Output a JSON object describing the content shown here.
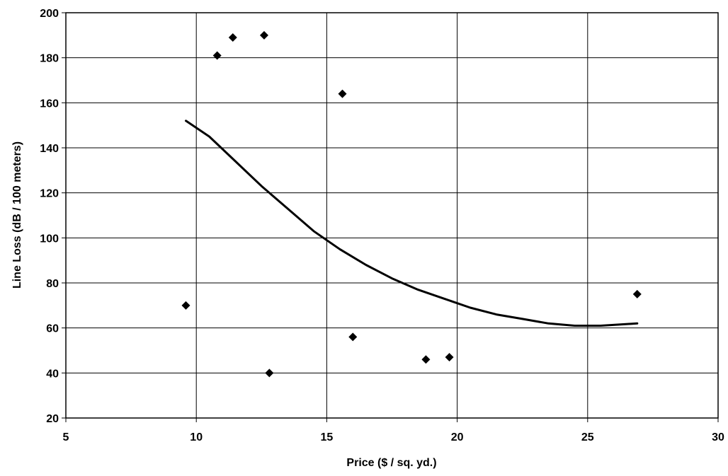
{
  "chart_data": {
    "type": "scatter",
    "title": "",
    "xlabel": "Price ($ / sq. yd.)",
    "ylabel": "Line Loss (dB / 100 meters)",
    "xlim": [
      5,
      30
    ],
    "ylim": [
      20,
      200
    ],
    "x_ticks": [
      5,
      10,
      15,
      20,
      25,
      30
    ],
    "y_ticks": [
      20,
      40,
      60,
      80,
      100,
      120,
      140,
      160,
      180,
      200
    ],
    "grid": true,
    "legend": "none",
    "marker": "diamond",
    "series": [
      {
        "points": [
          {
            "x": 9.6,
            "y": 70
          },
          {
            "x": 10.8,
            "y": 181
          },
          {
            "x": 11.4,
            "y": 189
          },
          {
            "x": 12.6,
            "y": 190
          },
          {
            "x": 12.8,
            "y": 40
          },
          {
            "x": 15.6,
            "y": 164
          },
          {
            "x": 16.0,
            "y": 56
          },
          {
            "x": 18.8,
            "y": 46
          },
          {
            "x": 19.7,
            "y": 47
          },
          {
            "x": 26.9,
            "y": 75
          }
        ]
      }
    ],
    "trendline": {
      "kind": "polynomial",
      "points": [
        {
          "x": 9.6,
          "y": 152
        },
        {
          "x": 10.5,
          "y": 145
        },
        {
          "x": 11.5,
          "y": 134
        },
        {
          "x": 12.5,
          "y": 123
        },
        {
          "x": 13.5,
          "y": 113
        },
        {
          "x": 14.5,
          "y": 103
        },
        {
          "x": 15.5,
          "y": 95
        },
        {
          "x": 16.5,
          "y": 88
        },
        {
          "x": 17.5,
          "y": 82
        },
        {
          "x": 18.5,
          "y": 77
        },
        {
          "x": 19.5,
          "y": 73
        },
        {
          "x": 20.5,
          "y": 69
        },
        {
          "x": 21.5,
          "y": 66
        },
        {
          "x": 22.5,
          "y": 64
        },
        {
          "x": 23.5,
          "y": 62
        },
        {
          "x": 24.5,
          "y": 61
        },
        {
          "x": 25.5,
          "y": 61
        },
        {
          "x": 26.9,
          "y": 62
        }
      ]
    }
  }
}
